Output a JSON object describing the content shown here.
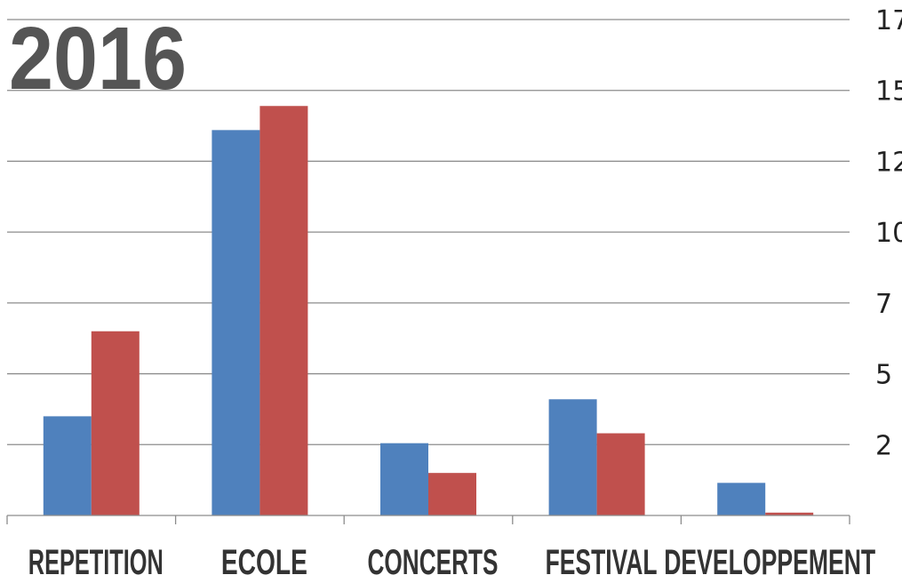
{
  "chart_data": {
    "type": "bar",
    "title": "2016",
    "categories": [
      "REPETITION",
      "ECOLE",
      "CONCERTS",
      "FESTIVAL",
      "DEVELOPPEMENT"
    ],
    "series": [
      {
        "color": "#4F81BD",
        "values": [
          35,
          136,
          25.5,
          41,
          11.5
        ]
      },
      {
        "color": "#C0504D",
        "values": [
          65,
          144.5,
          15,
          29,
          1
        ]
      }
    ],
    "yticks": [
      "17",
      "15",
      "12",
      "10",
      "7",
      "5",
      "2"
    ],
    "ylim": [
      0,
      175
    ],
    "grid": true,
    "gridline_color": "#8C8C8C"
  }
}
